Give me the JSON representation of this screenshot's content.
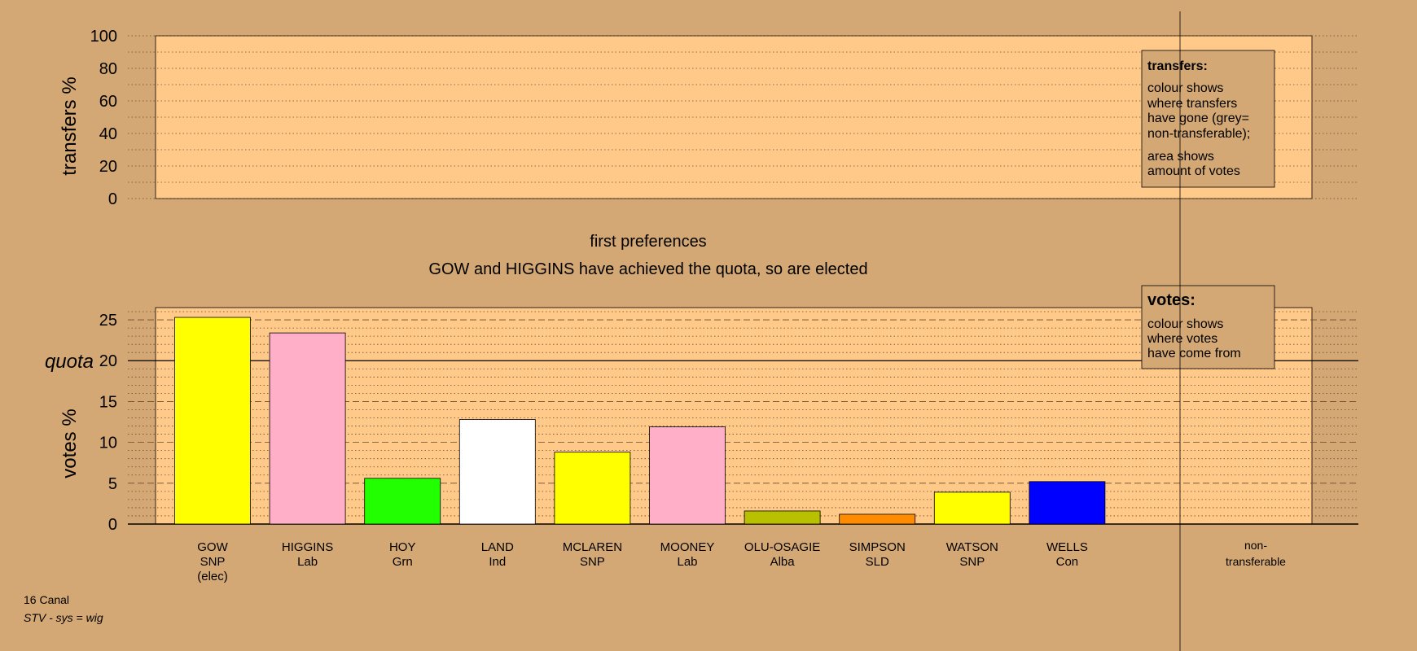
{
  "colors": {
    "background": "#d4a874",
    "plot_bg": "#ffc98a",
    "legend_bg": "#d4a874"
  },
  "top_panel": {
    "ylabel": "transfers %",
    "ticks": [
      "0",
      "20",
      "40",
      "60",
      "80",
      "100"
    ],
    "legend": {
      "title": "transfers:",
      "lines1": [
        "colour shows",
        "where transfers",
        "have gone (grey=",
        "non-transferable);"
      ],
      "lines2": [
        "area shows",
        "amount of votes"
      ]
    }
  },
  "middle": {
    "heading": "first preferences",
    "subheading": "GOW and HIGGINS have achieved the quota, so are elected"
  },
  "bottom_panel": {
    "ylabel": "votes %",
    "quota_label": "quota",
    "legend": {
      "title": "votes:",
      "lines": [
        "colour shows",
        "where votes",
        "have come from"
      ]
    }
  },
  "footer": {
    "line1": "16 Canal",
    "line2": "STV - sys = wig"
  },
  "chart_data": [
    {
      "type": "bar",
      "title": "",
      "ylabel": "transfers %",
      "ylim": [
        0,
        100
      ],
      "yticks": [
        0,
        20,
        40,
        60,
        80,
        100
      ],
      "values": []
    },
    {
      "type": "bar",
      "title": "first preferences",
      "subtitle": "GOW and HIGGINS have achieved the quota, so are elected",
      "ylabel": "votes %",
      "ylim": [
        0,
        26.5
      ],
      "yticks": [
        0,
        5,
        10,
        15,
        20,
        25
      ],
      "quota": 20,
      "categories": [
        {
          "name": "GOW",
          "party": "SNP",
          "note": "(elec)"
        },
        {
          "name": "HIGGINS",
          "party": "Lab",
          "note": ""
        },
        {
          "name": "HOY",
          "party": "Grn",
          "note": ""
        },
        {
          "name": "LAND",
          "party": "Ind",
          "note": ""
        },
        {
          "name": "MCLAREN",
          "party": "SNP",
          "note": ""
        },
        {
          "name": "MOONEY",
          "party": "Lab",
          "note": ""
        },
        {
          "name": "OLU-OSAGIE",
          "party": "Alba",
          "note": ""
        },
        {
          "name": "SIMPSON",
          "party": "SLD",
          "note": ""
        },
        {
          "name": "WATSON",
          "party": "SNP",
          "note": ""
        },
        {
          "name": "WELLS",
          "party": "Con",
          "note": ""
        }
      ],
      "values": [
        25.3,
        23.4,
        5.6,
        12.8,
        8.8,
        11.9,
        1.6,
        1.2,
        3.9,
        5.2
      ],
      "bar_colors": [
        "#ffff00",
        "#ffb0c8",
        "#22ff00",
        "#ffffff",
        "#ffff00",
        "#ffb0c8",
        "#b8c000",
        "#ff8c00",
        "#ffff00",
        "#0000ff"
      ],
      "extra_category": {
        "line1": "non-",
        "line2": "transferable"
      }
    }
  ]
}
